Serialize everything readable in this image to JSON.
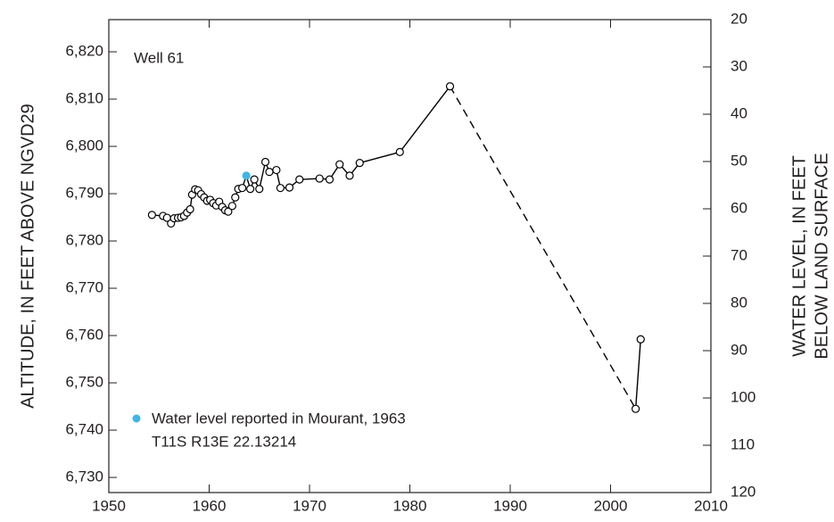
{
  "chart_data": {
    "type": "line",
    "annotations": [
      "Well 61",
      "T11S R13E 22.13214"
    ],
    "ylabel": "ALTITUDE, IN FEET ABOVE NGVD29",
    "y2label": [
      "WATER LEVEL, IN FEET",
      "BELOW LAND SURFACE"
    ],
    "xlim": [
      1950,
      2010
    ],
    "xticks": [
      1950,
      1960,
      1970,
      1980,
      1990,
      2000,
      2010
    ],
    "ylim": [
      6726.8,
      6826.8
    ],
    "yticks": [
      {
        "value": 6730,
        "label": "6,730"
      },
      {
        "value": 6740,
        "label": "6,740"
      },
      {
        "value": 6750,
        "label": "6,750"
      },
      {
        "value": 6760,
        "label": "6,760"
      },
      {
        "value": 6770,
        "label": "6,770"
      },
      {
        "value": 6780,
        "label": "6,780"
      },
      {
        "value": 6790,
        "label": "6,790"
      },
      {
        "value": 6800,
        "label": "6,800"
      },
      {
        "value": 6810,
        "label": "6,810"
      },
      {
        "value": 6820,
        "label": "6,820"
      }
    ],
    "y2lim": [
      120,
      20
    ],
    "y2ticks": [
      20,
      30,
      40,
      50,
      60,
      70,
      80,
      90,
      100,
      110,
      120
    ],
    "series": [
      {
        "color": "#000000",
        "x": [
          1954.3,
          1955.4,
          1955.8,
          1956.2,
          1956.5,
          1956.9,
          1957.2,
          1957.5,
          1957.8,
          1958.1,
          1958.3,
          1958.6,
          1958.9,
          1959.2,
          1959.5,
          1959.8,
          1960.1,
          1960.4,
          1960.7,
          1961.0,
          1961.3,
          1961.6,
          1961.9,
          1962.3,
          1962.6,
          1962.9,
          1963.3,
          1963.7,
          1964.1,
          1964.5,
          1965.0,
          1965.6,
          1966.0,
          1966.7,
          1967.1,
          1968.0,
          1969.0,
          1971.0,
          1972.0,
          1973.0,
          1974.0,
          1975.0,
          1979.0,
          1984.0,
          2002.5,
          2003.0
        ],
        "values": [
          6785.5,
          6785.3,
          6784.9,
          6783.7,
          6784.8,
          6784.9,
          6785.0,
          6785.3,
          6786.0,
          6786.7,
          6789.8,
          6790.9,
          6790.7,
          6789.9,
          6789.2,
          6788.5,
          6788.7,
          6788.0,
          6787.5,
          6788.3,
          6787.2,
          6786.5,
          6786.2,
          6787.4,
          6789.2,
          6791.0,
          6791.2,
          6793.8,
          6791.0,
          6793.0,
          6791.0,
          6796.7,
          6794.6,
          6795.0,
          6791.2,
          6791.3,
          6793.0,
          6793.2,
          6793.0,
          6796.2,
          6793.8,
          6796.5,
          6798.8,
          6812.7,
          6744.5,
          6759.2
        ],
        "dashed_segments": [
          43
        ],
        "highlight": {
          "index": 27,
          "color": "#41b6e6"
        }
      }
    ],
    "legend": {
      "color": "#41b6e6",
      "label": "Water level reported in Mourant, 1963"
    }
  }
}
